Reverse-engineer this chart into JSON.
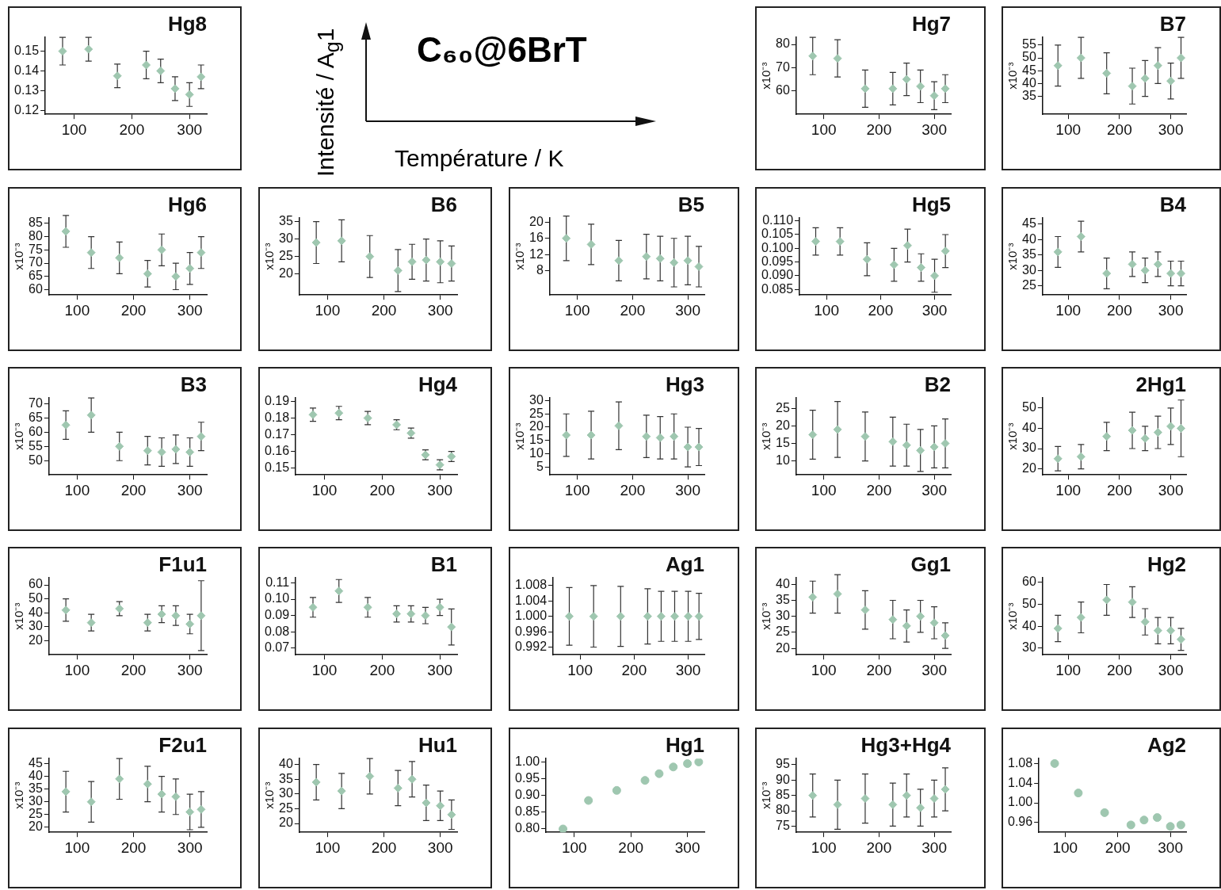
{
  "chart_data": [
    {
      "type": "scatter",
      "title": "Hg8",
      "marker": "diamond",
      "color": "#9fc7b0",
      "x": [
        80,
        125,
        175,
        225,
        250,
        275,
        300,
        320
      ],
      "values": [
        0.15,
        0.151,
        0.1375,
        0.143,
        0.14,
        0.131,
        0.128,
        0.137
      ],
      "errors": [
        0.007,
        0.006,
        0.006,
        0.007,
        0.006,
        0.006,
        0.006,
        0.006
      ],
      "xlim": [
        50,
        330
      ],
      "xticks": [
        100,
        200,
        300
      ],
      "ylim": [
        0.118,
        0.157
      ],
      "yticks": [
        0.12,
        0.13,
        0.14,
        0.15
      ]
    },
    {
      "type": "other",
      "title": "C₆₀@6BrT",
      "xlabel": "Température / K",
      "ylabel": "Intensité / A$_{g}$1"
    },
    {
      "type": "scatter",
      "title": "Hg7",
      "ylabel": "x10⁻³",
      "marker": "diamond",
      "color": "#9fc7b0",
      "x": [
        80,
        125,
        175,
        225,
        250,
        275,
        300,
        320
      ],
      "values": [
        75,
        74,
        61,
        61,
        65,
        62,
        58,
        61
      ],
      "errors": [
        8,
        8,
        8,
        7,
        7,
        7,
        6,
        6
      ],
      "xlim": [
        50,
        330
      ],
      "xticks": [
        100,
        200,
        300
      ],
      "ylim": [
        50,
        83
      ],
      "yticks": [
        60,
        70,
        80
      ]
    },
    {
      "type": "scatter",
      "title": "B7",
      "ylabel": "x10⁻³",
      "marker": "diamond",
      "color": "#9fc7b0",
      "x": [
        80,
        125,
        175,
        225,
        250,
        275,
        300,
        320
      ],
      "values": [
        47,
        50,
        44,
        39,
        42,
        47,
        41,
        50
      ],
      "errors": [
        8,
        8,
        8,
        7,
        7,
        7,
        7,
        8
      ],
      "xlim": [
        50,
        330
      ],
      "xticks": [
        100,
        200,
        300
      ],
      "ylim": [
        28,
        58
      ],
      "yticks": [
        35,
        40,
        45,
        50,
        55
      ]
    },
    {
      "type": "scatter",
      "title": "Hg6",
      "ylabel": "x10⁻³",
      "marker": "diamond",
      "color": "#9fc7b0",
      "x": [
        80,
        125,
        175,
        225,
        250,
        275,
        300,
        320
      ],
      "values": [
        82,
        74,
        72,
        66,
        75,
        65,
        68,
        74
      ],
      "errors": [
        6,
        6,
        6,
        5,
        6,
        5,
        6,
        6
      ],
      "xlim": [
        50,
        330
      ],
      "xticks": [
        100,
        200,
        300
      ],
      "ylim": [
        58,
        87
      ],
      "yticks": [
        60,
        65,
        70,
        75,
        80,
        85
      ]
    },
    {
      "type": "scatter",
      "title": "B6",
      "ylabel": "x10⁻³",
      "marker": "diamond",
      "color": "#9fc7b0",
      "x": [
        80,
        125,
        175,
        225,
        250,
        275,
        300,
        320
      ],
      "values": [
        29,
        29.5,
        25,
        21,
        23.5,
        24,
        23.5,
        23
      ],
      "errors": [
        6,
        6,
        6,
        6,
        5,
        6,
        6,
        5
      ],
      "xlim": [
        50,
        330
      ],
      "xticks": [
        100,
        200,
        300
      ],
      "ylim": [
        14,
        36
      ],
      "yticks": [
        20,
        25,
        30,
        35
      ]
    },
    {
      "type": "scatter",
      "title": "B5",
      "ylabel": "x10⁻³",
      "marker": "diamond",
      "color": "#9fc7b0",
      "x": [
        80,
        125,
        175,
        225,
        250,
        275,
        300,
        320
      ],
      "values": [
        16,
        14.5,
        10.5,
        11.5,
        11,
        10,
        10.5,
        9
      ],
      "errors": [
        5.5,
        5,
        5,
        5.5,
        5.5,
        6,
        6,
        5
      ],
      "xlim": [
        50,
        330
      ],
      "xticks": [
        100,
        200,
        300
      ],
      "ylim": [
        2,
        21
      ],
      "yticks": [
        8,
        12,
        16,
        20
      ]
    },
    {
      "type": "scatter",
      "title": "Hg5",
      "marker": "diamond",
      "color": "#9fc7b0",
      "x": [
        80,
        125,
        175,
        225,
        250,
        275,
        300,
        320
      ],
      "values": [
        0.1025,
        0.1025,
        0.096,
        0.094,
        0.101,
        0.093,
        0.09,
        0.099
      ],
      "errors": [
        0.005,
        0.005,
        0.006,
        0.006,
        0.006,
        0.005,
        0.006,
        0.006
      ],
      "xlim": [
        50,
        330
      ],
      "xticks": [
        100,
        200,
        300
      ],
      "ylim": [
        0.083,
        0.111
      ],
      "yticks": [
        {
          "value": 0.085,
          "label": "0.085"
        },
        {
          "value": 0.09,
          "label": "0.090"
        },
        {
          "value": 0.095,
          "label": "0.095"
        },
        {
          "value": 0.1,
          "label": "0.100"
        },
        {
          "value": 0.105,
          "label": "0.105"
        },
        {
          "value": 0.11,
          "label": "0.110"
        }
      ]
    },
    {
      "type": "scatter",
      "title": "B4",
      "ylabel": "x10⁻³",
      "marker": "diamond",
      "color": "#9fc7b0",
      "x": [
        80,
        125,
        175,
        225,
        250,
        275,
        300,
        320
      ],
      "values": [
        36,
        41,
        29,
        32,
        30,
        32,
        29,
        29
      ],
      "errors": [
        5,
        5,
        5,
        4,
        4,
        4,
        4,
        4
      ],
      "xlim": [
        50,
        330
      ],
      "xticks": [
        100,
        200,
        300
      ],
      "ylim": [
        22,
        47
      ],
      "yticks": [
        25,
        30,
        35,
        40,
        45
      ]
    },
    {
      "type": "scatter",
      "title": "B3",
      "ylabel": "x10⁻³",
      "marker": "diamond",
      "color": "#9fc7b0",
      "x": [
        80,
        125,
        175,
        225,
        250,
        275,
        300,
        320
      ],
      "values": [
        62.5,
        66,
        55,
        53.5,
        53,
        54,
        53,
        58.5
      ],
      "errors": [
        5,
        6,
        5,
        5,
        5,
        5,
        5,
        5
      ],
      "xlim": [
        50,
        330
      ],
      "xticks": [
        100,
        200,
        300
      ],
      "ylim": [
        45,
        72
      ],
      "yticks": [
        50,
        55,
        60,
        65,
        70
      ]
    },
    {
      "type": "scatter",
      "title": "Hg4",
      "marker": "diamond",
      "color": "#9fc7b0",
      "x": [
        80,
        125,
        175,
        225,
        250,
        275,
        300,
        320
      ],
      "values": [
        0.182,
        0.183,
        0.18,
        0.176,
        0.171,
        0.158,
        0.152,
        0.157
      ],
      "errors": [
        0.004,
        0.004,
        0.004,
        0.003,
        0.003,
        0.003,
        0.003,
        0.003
      ],
      "xlim": [
        50,
        330
      ],
      "xticks": [
        100,
        200,
        300
      ],
      "ylim": [
        0.146,
        0.192
      ],
      "yticks": [
        0.15,
        0.16,
        0.17,
        0.18,
        0.19
      ]
    },
    {
      "type": "scatter",
      "title": "Hg3",
      "ylabel": "x10⁻³",
      "marker": "diamond",
      "color": "#9fc7b0",
      "x": [
        80,
        125,
        175,
        225,
        250,
        275,
        300,
        320
      ],
      "values": [
        17,
        17,
        20.5,
        16.5,
        16,
        16.5,
        12.5,
        12.5
      ],
      "errors": [
        8,
        9,
        9,
        8,
        8,
        8.5,
        7.5,
        7
      ],
      "xlim": [
        50,
        330
      ],
      "xticks": [
        100,
        200,
        300
      ],
      "ylim": [
        2,
        31
      ],
      "yticks": [
        5,
        10,
        15,
        20,
        25,
        30
      ]
    },
    {
      "type": "scatter",
      "title": "B2",
      "ylabel": "x10⁻³",
      "marker": "diamond",
      "color": "#9fc7b0",
      "x": [
        80,
        125,
        175,
        225,
        250,
        275,
        300,
        320
      ],
      "values": [
        17.5,
        19,
        17,
        15.5,
        14.5,
        13,
        14,
        15
      ],
      "errors": [
        7,
        8,
        7,
        7,
        6,
        6,
        6,
        7
      ],
      "xlim": [
        50,
        330
      ],
      "xticks": [
        100,
        200,
        300
      ],
      "ylim": [
        6,
        28
      ],
      "yticks": [
        10,
        15,
        20,
        25
      ]
    },
    {
      "type": "scatter",
      "title": "2Hg1",
      "ylabel": "x10⁻³",
      "marker": "diamond",
      "color": "#9fc7b0",
      "x": [
        80,
        125,
        175,
        225,
        250,
        275,
        300,
        320
      ],
      "values": [
        25,
        26,
        36,
        39,
        35,
        38,
        41,
        40
      ],
      "errors": [
        6,
        6,
        7,
        9,
        6,
        8,
        9,
        14
      ],
      "xlim": [
        50,
        330
      ],
      "xticks": [
        100,
        200,
        300
      ],
      "ylim": [
        17,
        55
      ],
      "yticks": [
        20,
        30,
        40,
        50
      ]
    },
    {
      "type": "scatter",
      "title": "F1u1",
      "ylabel": "x10⁻³",
      "marker": "diamond",
      "color": "#9fc7b0",
      "x": [
        80,
        125,
        175,
        225,
        250,
        275,
        300,
        320
      ],
      "values": [
        42,
        33,
        43,
        33,
        39,
        38,
        32,
        38
      ],
      "errors": [
        8,
        6,
        5,
        6,
        6,
        7,
        7,
        25
      ],
      "xlim": [
        50,
        330
      ],
      "xticks": [
        100,
        200,
        300
      ],
      "ylim": [
        10,
        65
      ],
      "yticks": [
        20,
        30,
        40,
        50,
        60
      ]
    },
    {
      "type": "scatter",
      "title": "B1",
      "marker": "diamond",
      "color": "#9fc7b0",
      "x": [
        80,
        125,
        175,
        225,
        250,
        275,
        300,
        320
      ],
      "values": [
        0.095,
        0.105,
        0.095,
        0.091,
        0.091,
        0.09,
        0.095,
        0.083
      ],
      "errors": [
        0.006,
        0.007,
        0.006,
        0.005,
        0.005,
        0.005,
        0.005,
        0.011
      ],
      "xlim": [
        50,
        330
      ],
      "xticks": [
        100,
        200,
        300
      ],
      "ylim": [
        0.066,
        0.113
      ],
      "yticks": [
        0.07,
        0.08,
        0.09,
        {
          "value": 0.1,
          "label": "0.10"
        },
        0.11
      ]
    },
    {
      "type": "scatter",
      "title": "Ag1",
      "marker": "diamond",
      "color": "#9fc7b0",
      "x": [
        80,
        125,
        175,
        225,
        250,
        275,
        300,
        320
      ],
      "values": [
        1,
        1,
        1,
        1,
        1,
        1,
        1,
        1
      ],
      "errors": [
        0.0075,
        0.008,
        0.0078,
        0.0072,
        0.0065,
        0.0065,
        0.0065,
        0.006
      ],
      "xlim": [
        50,
        330
      ],
      "xticks": [
        100,
        200,
        300
      ],
      "ylim": [
        0.99,
        1.01
      ],
      "yticks": [
        0.992,
        0.996,
        {
          "value": 1,
          "label": "1.000"
        },
        1.004,
        1.008
      ]
    },
    {
      "type": "scatter",
      "title": "Gg1",
      "ylabel": "x10⁻³",
      "marker": "diamond",
      "color": "#9fc7b0",
      "x": [
        80,
        125,
        175,
        225,
        250,
        275,
        300,
        320
      ],
      "values": [
        36,
        37,
        32,
        29,
        27,
        30,
        28,
        24
      ],
      "errors": [
        5,
        6,
        6,
        6,
        5,
        5,
        5,
        4
      ],
      "xlim": [
        50,
        330
      ],
      "xticks": [
        100,
        200,
        300
      ],
      "ylim": [
        18,
        42
      ],
      "yticks": [
        20,
        25,
        30,
        35,
        40
      ]
    },
    {
      "type": "scatter",
      "title": "Hg2",
      "ylabel": "x10⁻³",
      "marker": "diamond",
      "color": "#9fc7b0",
      "x": [
        80,
        125,
        175,
        225,
        250,
        275,
        300,
        320
      ],
      "values": [
        39,
        44,
        52,
        51,
        42,
        38,
        38,
        34
      ],
      "errors": [
        6,
        7,
        7,
        7,
        6,
        6,
        6,
        5
      ],
      "xlim": [
        50,
        330
      ],
      "xticks": [
        100,
        200,
        300
      ],
      "ylim": [
        27,
        62
      ],
      "yticks": [
        30,
        40,
        50,
        60
      ]
    },
    {
      "type": "scatter",
      "title": "F2u1",
      "ylabel": "x10⁻³",
      "marker": "diamond",
      "color": "#9fc7b0",
      "x": [
        80,
        125,
        175,
        225,
        250,
        275,
        300,
        320
      ],
      "values": [
        34,
        30,
        39,
        37,
        33,
        32,
        26,
        27
      ],
      "errors": [
        8,
        8,
        8,
        7,
        7,
        7,
        7,
        7
      ],
      "xlim": [
        50,
        330
      ],
      "xticks": [
        100,
        200,
        300
      ],
      "ylim": [
        18,
        47
      ],
      "yticks": [
        20,
        25,
        30,
        35,
        40,
        45
      ]
    },
    {
      "type": "scatter",
      "title": "Hu1",
      "ylabel": "x10⁻³",
      "marker": "diamond",
      "color": "#9fc7b0",
      "x": [
        80,
        125,
        175,
        225,
        250,
        275,
        300,
        320
      ],
      "values": [
        34,
        31,
        36,
        32,
        35,
        27,
        26,
        23
      ],
      "errors": [
        6,
        6,
        6,
        6,
        6,
        6,
        5,
        5
      ],
      "xlim": [
        50,
        330
      ],
      "xticks": [
        100,
        200,
        300
      ],
      "ylim": [
        17,
        42
      ],
      "yticks": [
        20,
        25,
        30,
        35,
        40
      ]
    },
    {
      "type": "scatter",
      "title": "Hg1",
      "marker": "circle",
      "color": "#9fc7b0",
      "x": [
        80,
        125,
        175,
        225,
        250,
        275,
        300,
        320
      ],
      "values": [
        0.8,
        0.885,
        0.915,
        0.945,
        0.965,
        0.985,
        0.995,
        1
      ],
      "xlim": [
        50,
        330
      ],
      "xticks": [
        100,
        200,
        300
      ],
      "ylim": [
        0.79,
        1.01
      ],
      "yticks": [
        {
          "value": 0.8,
          "label": "0.80"
        },
        0.85,
        {
          "value": 0.9,
          "label": "0.90"
        },
        0.95,
        {
          "value": 1,
          "label": "1.00"
        }
      ]
    },
    {
      "type": "scatter",
      "title": "Hg3+Hg4",
      "ylabel": "x10⁻³",
      "marker": "diamond",
      "color": "#9fc7b0",
      "x": [
        80,
        125,
        175,
        225,
        250,
        275,
        300,
        320
      ],
      "values": [
        85,
        82,
        84,
        82,
        85,
        81,
        84,
        87
      ],
      "errors": [
        7,
        8,
        8,
        7,
        7,
        6,
        6,
        7
      ],
      "xlim": [
        50,
        330
      ],
      "xticks": [
        100,
        200,
        300
      ],
      "ylim": [
        73,
        97
      ],
      "yticks": [
        75,
        80,
        85,
        90,
        95
      ]
    },
    {
      "type": "scatter",
      "title": "Ag2",
      "marker": "circle",
      "color": "#9fc7b0",
      "x": [
        80,
        125,
        175,
        225,
        250,
        275,
        300,
        320
      ],
      "values": [
        1.08,
        1.02,
        0.98,
        0.955,
        0.965,
        0.97,
        0.952,
        0.955
      ],
      "xlim": [
        50,
        330
      ],
      "xticks": [
        100,
        200,
        300
      ],
      "ylim": [
        0.94,
        1.09
      ],
      "yticks": [
        0.96,
        {
          "value": 1,
          "label": "1.00"
        },
        1.04,
        1.08
      ]
    }
  ]
}
